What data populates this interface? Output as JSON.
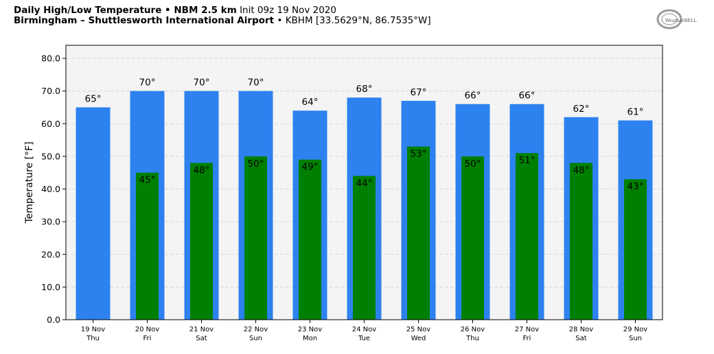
{
  "header": {
    "title_bold": "Daily High/Low Temperature • NBM 2.5 km",
    "title_init": "Init 09z 19 Nov 2020",
    "location_bold": "Birmingham – Shuttlesworth International Airport",
    "location_detail": "• KBHM [33.5629°N, 86.7535°W]"
  },
  "logo": {
    "text": "WeatherBELL"
  },
  "chart_data": {
    "type": "bar",
    "ylabel": "Temperature [°F]",
    "ylim": [
      0,
      84
    ],
    "yticks": [
      "0.0",
      "10.0",
      "20.0",
      "30.0",
      "40.0",
      "50.0",
      "60.0",
      "70.0",
      "80.0"
    ],
    "grid": true,
    "categories": [
      {
        "date": "19 Nov",
        "day": "Thu"
      },
      {
        "date": "20 Nov",
        "day": "Fri"
      },
      {
        "date": "21 Nov",
        "day": "Sat"
      },
      {
        "date": "22 Nov",
        "day": "Sun"
      },
      {
        "date": "23 Nov",
        "day": "Mon"
      },
      {
        "date": "24 Nov",
        "day": "Tue"
      },
      {
        "date": "25 Nov",
        "day": "Wed"
      },
      {
        "date": "26 Nov",
        "day": "Thu"
      },
      {
        "date": "27 Nov",
        "day": "Fri"
      },
      {
        "date": "28 Nov",
        "day": "Sat"
      },
      {
        "date": "29 Nov",
        "day": "Sun"
      }
    ],
    "series": [
      {
        "values": [
          65,
          70,
          70,
          70,
          64,
          68,
          67,
          66,
          66,
          62,
          61
        ],
        "labels": [
          "65°",
          "70°",
          "70°",
          "70°",
          "64°",
          "68°",
          "67°",
          "66°",
          "66°",
          "62°",
          "61°"
        ],
        "color": "#2d82ef"
      },
      {
        "values": [
          null,
          45,
          48,
          50,
          49,
          44,
          53,
          50,
          51,
          48,
          43
        ],
        "labels": [
          "",
          "45°",
          "48°",
          "50°",
          "49°",
          "44°",
          "53°",
          "50°",
          "51°",
          "48°",
          "43°"
        ],
        "color": "#008000"
      }
    ],
    "plot_bg": "#f4f4f4"
  }
}
